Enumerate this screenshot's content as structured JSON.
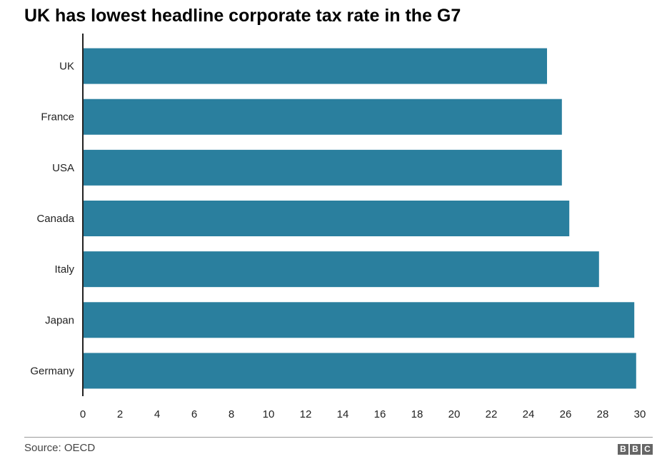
{
  "chart_data": {
    "type": "bar",
    "orientation": "horizontal",
    "title": "UK has lowest headline corporate tax rate in the G7",
    "categories": [
      "UK",
      "France",
      "USA",
      "Canada",
      "Italy",
      "Japan",
      "Germany"
    ],
    "values": [
      25,
      25.8,
      25.8,
      26.2,
      27.8,
      29.7,
      29.8
    ],
    "xlim": [
      0,
      30
    ],
    "xticks": [
      "0",
      "2",
      "4",
      "6",
      "8",
      "10",
      "12",
      "14",
      "16",
      "18",
      "20",
      "22",
      "24",
      "26",
      "28",
      "30"
    ],
    "bar_color": "#2a7f9e",
    "grid": false
  },
  "source": "Source: OECD",
  "logo": {
    "letters": [
      "B",
      "B",
      "C"
    ]
  }
}
